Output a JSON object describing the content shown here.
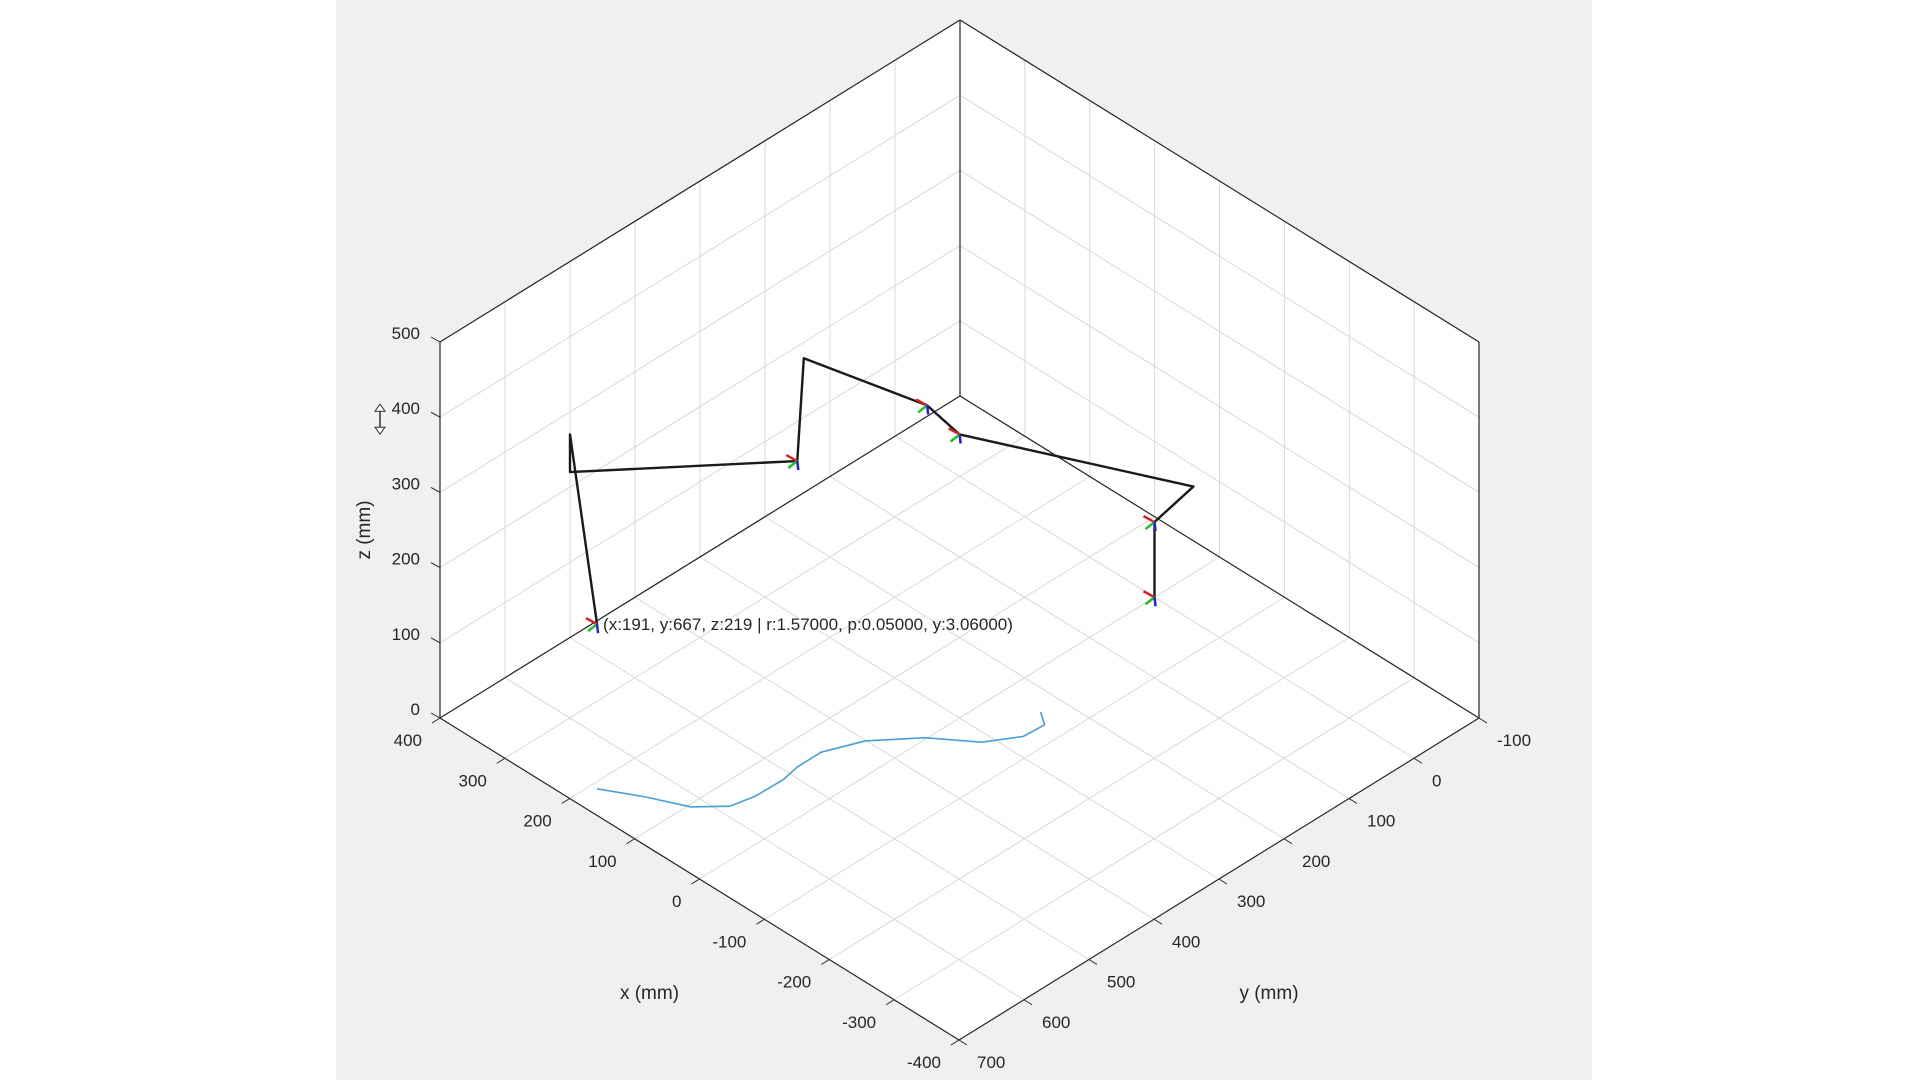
{
  "chart_data": {
    "type": "line",
    "subtype": "3d-robot-arm",
    "xlabel": "x (mm)",
    "ylabel": "y (mm)",
    "zlabel": "z (mm)",
    "xlim": [
      -400,
      400
    ],
    "ylim": [
      -100,
      700
    ],
    "zlim": [
      0,
      500
    ],
    "x_ticks": [
      "400",
      "300",
      "200",
      "100",
      "0",
      "-100",
      "-200",
      "-300",
      "-400"
    ],
    "y_ticks": [
      "-100",
      "0",
      "100",
      "200",
      "300",
      "400",
      "500",
      "600",
      "700"
    ],
    "z_ticks": [
      "0",
      "100",
      "200",
      "300",
      "400",
      "500"
    ],
    "grid": true,
    "colors": {
      "arm": "#1a1a1a",
      "trajectory": "#4a9fd9",
      "frame_x": "#e02020",
      "frame_y": "#20c020",
      "frame_z": "#2020e0",
      "grid": "#d8d8d8",
      "background": "#f0f0f0",
      "axes": "#ffffff"
    },
    "arm_joints": [
      {
        "x": 0,
        "y": 0,
        "z": 0
      },
      {
        "x": 0,
        "y": 0,
        "z": 100
      },
      {
        "x": -70,
        "y": 10,
        "z": 190
      },
      {
        "x": 100,
        "y": 200,
        "z": 270
      },
      {
        "x": 105,
        "y": 245,
        "z": 330
      },
      {
        "x": 240,
        "y": 300,
        "z": 350
      },
      {
        "x": 220,
        "y": 330,
        "z": 240
      },
      {
        "x": 400,
        "y": 500,
        "z": 220
      },
      {
        "x": 400,
        "y": 500,
        "z": 270
      },
      {
        "x": 191,
        "y": 667,
        "z": 219
      }
    ],
    "frames_at_joint_index": [
      0,
      1,
      3,
      4,
      6,
      9
    ],
    "trajectory_z": 0,
    "trajectory": [
      {
        "x": 191,
        "y": 667
      },
      {
        "x": 144,
        "y": 640
      },
      {
        "x": 96,
        "y": 617
      },
      {
        "x": 67,
        "y": 586
      },
      {
        "x": 60,
        "y": 554
      },
      {
        "x": 59,
        "y": 512
      },
      {
        "x": 64,
        "y": 486
      },
      {
        "x": 64,
        "y": 449
      },
      {
        "x": 44,
        "y": 401
      },
      {
        "x": 2,
        "y": 351
      },
      {
        "x": -47,
        "y": 313
      },
      {
        "x": -72,
        "y": 274
      },
      {
        "x": -74,
        "y": 243
      },
      {
        "x": -55,
        "y": 230
      }
    ],
    "data_tip": "(x:191, y:667, z:219 | r:1.57000, p:0.05000, y:3.06000)"
  }
}
